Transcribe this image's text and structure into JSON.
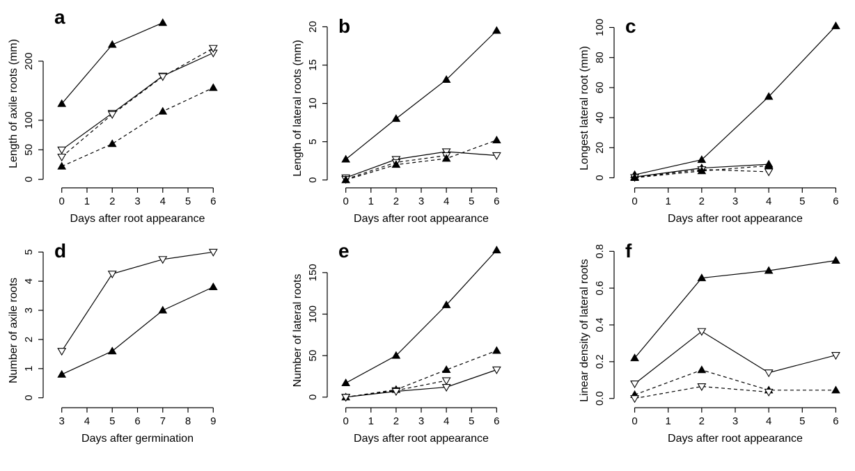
{
  "chart_data": [
    {
      "panel": "a",
      "type": "line",
      "xlabel": "Days after root appearance",
      "ylabel": "Length of axile roots (mm)",
      "xlim": [
        0,
        6
      ],
      "ylim": [
        0,
        260
      ],
      "xticks": [
        0,
        1,
        2,
        3,
        4,
        5,
        6
      ],
      "yticks": [
        0,
        50,
        100,
        200
      ],
      "series": [
        {
          "marker": "filled-up-triangle",
          "line": "solid",
          "x": [
            0,
            2,
            4
          ],
          "y": [
            128,
            228,
            265
          ]
        },
        {
          "marker": "open-down-triangle",
          "line": "solid",
          "x": [
            0,
            2,
            4,
            6
          ],
          "y": [
            50,
            112,
            175,
            214
          ]
        },
        {
          "marker": "open-down-triangle",
          "line": "dashed",
          "x": [
            0,
            2,
            4,
            6
          ],
          "y": [
            38,
            110,
            174,
            222
          ]
        },
        {
          "marker": "filled-up-triangle",
          "line": "dashed",
          "x": [
            0,
            2,
            4,
            6
          ],
          "y": [
            22,
            60,
            115,
            155
          ]
        }
      ]
    },
    {
      "panel": "b",
      "type": "line",
      "xlabel": "Days after root appearance",
      "ylabel": "Length of lateral roots (mm)",
      "xlim": [
        0,
        6
      ],
      "ylim": [
        0,
        20
      ],
      "xticks": [
        0,
        1,
        2,
        3,
        4,
        5,
        6
      ],
      "yticks": [
        0,
        5,
        10,
        15,
        20
      ],
      "series": [
        {
          "marker": "filled-up-triangle",
          "line": "solid",
          "x": [
            0,
            2,
            4,
            6
          ],
          "y": [
            2.7,
            8.0,
            13.1,
            19.5
          ]
        },
        {
          "marker": "open-down-triangle",
          "line": "solid",
          "x": [
            0,
            2,
            4,
            6
          ],
          "y": [
            0.3,
            2.7,
            3.7,
            3.2
          ]
        },
        {
          "marker": "open-down-triangle",
          "line": "dashed",
          "x": [
            0,
            2,
            4
          ],
          "y": [
            0.1,
            2.3,
            3.2
          ]
        },
        {
          "marker": "filled-up-triangle",
          "line": "dashed",
          "x": [
            0,
            2,
            4,
            6
          ],
          "y": [
            0.0,
            2.0,
            2.8,
            5.2
          ]
        }
      ]
    },
    {
      "panel": "c",
      "type": "line",
      "xlabel": "Days after root appearance",
      "ylabel": "Longest lateral root (mm)",
      "xlim": [
        0,
        6
      ],
      "ylim": [
        0,
        100
      ],
      "xticks": [
        0,
        1,
        2,
        3,
        4,
        5,
        6
      ],
      "yticks": [
        0,
        20,
        40,
        60,
        80,
        100
      ],
      "series": [
        {
          "marker": "filled-up-triangle",
          "line": "solid",
          "x": [
            0,
            2,
            4,
            6
          ],
          "y": [
            2,
            12,
            54,
            101
          ]
        },
        {
          "marker": "filled-up-triangle",
          "line": "solid",
          "x": [
            0,
            2,
            4
          ],
          "y": [
            0.5,
            6.5,
            9
          ]
        },
        {
          "marker": "open-down-triangle",
          "line": "dashed",
          "x": [
            0,
            2,
            4
          ],
          "y": [
            0.3,
            5.5,
            4
          ]
        },
        {
          "marker": "filled-up-triangle",
          "line": "dashed",
          "x": [
            0,
            2,
            4
          ],
          "y": [
            0,
            4.5,
            8
          ]
        }
      ]
    },
    {
      "panel": "d",
      "type": "line",
      "xlabel": "Days after germination",
      "ylabel": "Number of axile roots",
      "xlim": [
        3,
        9
      ],
      "ylim": [
        0,
        5
      ],
      "xticks": [
        3,
        4,
        5,
        6,
        7,
        8,
        9
      ],
      "yticks": [
        0,
        1,
        2,
        3,
        4,
        5
      ],
      "series": [
        {
          "marker": "open-down-triangle",
          "line": "solid",
          "x": [
            3,
            5,
            7,
            9
          ],
          "y": [
            1.6,
            4.25,
            4.75,
            5.0
          ]
        },
        {
          "marker": "filled-up-triangle",
          "line": "solid",
          "x": [
            3,
            5,
            7,
            9
          ],
          "y": [
            0.8,
            1.6,
            3.0,
            3.8
          ]
        }
      ]
    },
    {
      "panel": "e",
      "type": "line",
      "xlabel": "Days after root appearance",
      "ylabel": "Number of lateral roots",
      "xlim": [
        0,
        6
      ],
      "ylim": [
        0,
        175
      ],
      "xticks": [
        0,
        1,
        2,
        3,
        4,
        5,
        6
      ],
      "yticks": [
        0,
        50,
        100,
        150
      ],
      "series": [
        {
          "marker": "filled-up-triangle",
          "line": "solid",
          "x": [
            0,
            2,
            4,
            6
          ],
          "y": [
            17,
            50,
            111,
            177
          ]
        },
        {
          "marker": "filled-up-triangle",
          "line": "dashed",
          "x": [
            0,
            2,
            4,
            6
          ],
          "y": [
            0,
            9,
            33,
            56
          ]
        },
        {
          "marker": "open-down-triangle",
          "line": "dashed",
          "x": [
            0,
            2,
            4
          ],
          "y": [
            0,
            8,
            20
          ]
        },
        {
          "marker": "open-down-triangle",
          "line": "solid",
          "x": [
            0,
            2,
            4,
            6
          ],
          "y": [
            0,
            7,
            12,
            33
          ]
        }
      ]
    },
    {
      "panel": "f",
      "type": "line",
      "xlabel": "Days after root appearance",
      "ylabel": "Linear density of lateral roots",
      "xlim": [
        0,
        6
      ],
      "ylim": [
        0,
        0.8
      ],
      "xticks": [
        0,
        1,
        2,
        3,
        4,
        5,
        6
      ],
      "yticks": [
        0.0,
        0.2,
        0.4,
        0.6,
        0.8
      ],
      "ytick_labels": [
        "0.0",
        "0.2",
        "0.4",
        "0.6",
        "0.8"
      ],
      "series": [
        {
          "marker": "filled-up-triangle",
          "line": "solid",
          "x": [
            0,
            2,
            4,
            6
          ],
          "y": [
            0.22,
            0.655,
            0.695,
            0.75
          ]
        },
        {
          "marker": "open-down-triangle",
          "line": "solid",
          "x": [
            0,
            2,
            4,
            6
          ],
          "y": [
            0.08,
            0.365,
            0.14,
            0.235
          ]
        },
        {
          "marker": "filled-up-triangle",
          "line": "dashed",
          "x": [
            0,
            2,
            4,
            6
          ],
          "y": [
            0.02,
            0.155,
            0.045,
            0.045
          ]
        },
        {
          "marker": "open-down-triangle",
          "line": "dashed",
          "x": [
            0,
            2,
            4
          ],
          "y": [
            0.0,
            0.065,
            0.035
          ]
        }
      ]
    }
  ]
}
